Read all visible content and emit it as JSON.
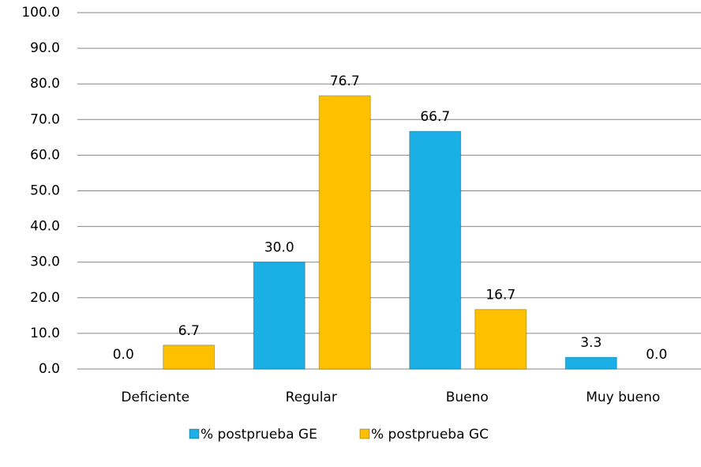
{
  "chart_data": {
    "type": "bar",
    "categories": [
      "Deficiente",
      "Regular",
      "Bueno",
      "Muy bueno"
    ],
    "series": [
      {
        "name": "% postprueba GE",
        "color": "#1ab0e6",
        "values": [
          0.0,
          30.0,
          66.7,
          3.3
        ],
        "value_labels": [
          "0.0",
          "30.0",
          "66.7",
          "3.3"
        ]
      },
      {
        "name": "% postprueba GC",
        "color": "#ffc000",
        "values": [
          6.7,
          76.7,
          16.7,
          0.0
        ],
        "value_labels": [
          "6.7",
          "76.7",
          "16.7",
          "0.0"
        ]
      }
    ],
    "ylim": [
      0,
      100
    ],
    "yticks": [
      {
        "value": 0,
        "label": "0.0"
      },
      {
        "value": 10,
        "label": "10.0"
      },
      {
        "value": 20,
        "label": "20.0"
      },
      {
        "value": 30,
        "label": "30.0"
      },
      {
        "value": 40,
        "label": "40.0"
      },
      {
        "value": 50,
        "label": "50.0"
      },
      {
        "value": 60,
        "label": "60.0"
      },
      {
        "value": 70,
        "label": "70.0"
      },
      {
        "value": 80,
        "label": "80.0"
      },
      {
        "value": 90,
        "label": "90.0"
      },
      {
        "value": 100,
        "label": "100.0"
      }
    ],
    "grid": true,
    "legend": "bottom"
  }
}
